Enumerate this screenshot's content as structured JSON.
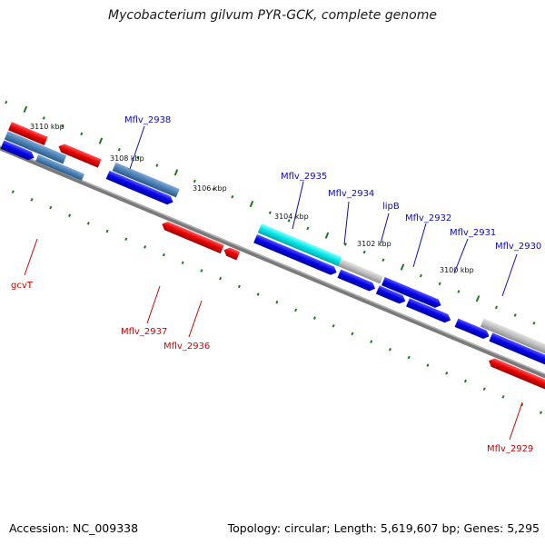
{
  "title": "Mycobacterium gilvum PYR-GCK, complete genome",
  "footer": {
    "accession": "Accession: NC_009338",
    "summary": "Topology: circular; Length: 5,619,607 bp; Genes: 5,295"
  },
  "ticks": [
    {
      "label": "3110 kbp"
    },
    {
      "label": "3108 kbp"
    },
    {
      "label": "3106 kbp"
    },
    {
      "label": "3104 kbp"
    },
    {
      "label": "3102 kbp"
    },
    {
      "label": "3100 kbp"
    }
  ],
  "genes": [
    {
      "id": "gcvT",
      "label": "gcvT",
      "strand": "reverse"
    },
    {
      "id": "Mflv_2938",
      "label": "Mflv_2938",
      "strand": "forward"
    },
    {
      "id": "Mflv_2937",
      "label": "Mflv_2937",
      "strand": "reverse"
    },
    {
      "id": "Mflv_2936",
      "label": "Mflv_2936",
      "strand": "reverse"
    },
    {
      "id": "Mflv_2935",
      "label": "Mflv_2935",
      "strand": "forward"
    },
    {
      "id": "Mflv_2934",
      "label": "Mflv_2934",
      "strand": "forward"
    },
    {
      "id": "lipB",
      "label": "lipB",
      "strand": "forward"
    },
    {
      "id": "Mflv_2932",
      "label": "Mflv_2932",
      "strand": "forward"
    },
    {
      "id": "Mflv_2931",
      "label": "Mflv_2931",
      "strand": "forward"
    },
    {
      "id": "Mflv_2930",
      "label": "Mflv_2930",
      "strand": "forward"
    },
    {
      "id": "Mflv_2929",
      "label": "Mflv_2929",
      "strand": "reverse"
    }
  ],
  "colors": {
    "backbone": "#7a7a7a",
    "forward_cds": "#0000e6",
    "reverse_cds": "#e60000",
    "rna": "#4a7fb5",
    "highlight": "#00e5e5",
    "other": "#bdbdbd",
    "tick": "#1a7a1a"
  }
}
